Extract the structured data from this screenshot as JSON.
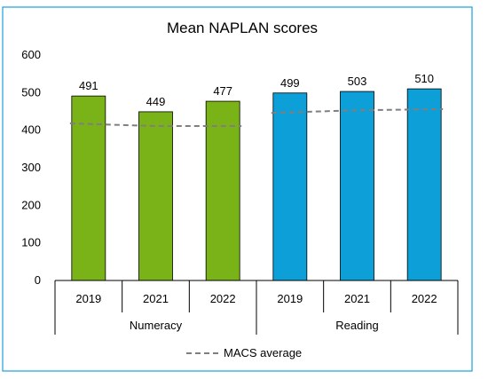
{
  "chart_data": {
    "type": "bar",
    "title": "Mean NAPLAN scores",
    "ylim": [
      0,
      600
    ],
    "yticks": [
      0,
      100,
      200,
      300,
      400,
      500,
      600
    ],
    "grid": false,
    "legend_position": "bottom",
    "groups": [
      {
        "name": "Numeracy",
        "color": "#7ab317",
        "categories": [
          "2019",
          "2021",
          "2022"
        ],
        "values": [
          491,
          449,
          477
        ],
        "average": [
          418,
          411,
          411
        ]
      },
      {
        "name": "Reading",
        "color": "#0d9fd8",
        "categories": [
          "2019",
          "2021",
          "2022"
        ],
        "values": [
          499,
          503,
          510
        ],
        "average": [
          446,
          453,
          456
        ]
      }
    ],
    "legend": {
      "label": "MACS average",
      "color": "#7f7f7f",
      "style": "dashed"
    }
  }
}
